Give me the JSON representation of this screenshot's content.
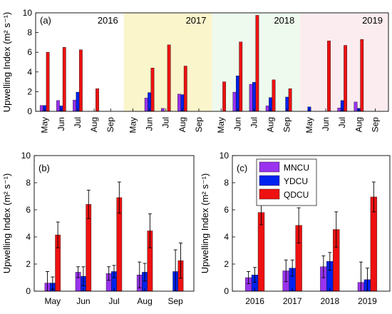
{
  "figure": {
    "colors": {
      "MNCU": "#9933ee",
      "YDCU": "#0022ee",
      "QDCU": "#ee1111"
    },
    "ylabel_main": "Upwelling Index",
    "ylabel_unit": "(m² s⁻¹)"
  },
  "chart_data": [
    {
      "id": "a",
      "type": "bar",
      "panel_label": "(a)",
      "ylim": [
        0,
        10
      ],
      "yticks": [
        0,
        2,
        4,
        6,
        8,
        10
      ],
      "months": [
        "May",
        "Jun",
        "Jul",
        "Aug",
        "Sep"
      ],
      "year_blocks": [
        {
          "year": "2016",
          "shade": "#ffffff",
          "values": [
            [
              0.6,
              0.6,
              6.0
            ],
            [
              1.1,
              0.55,
              6.5
            ],
            [
              1.15,
              1.95,
              6.25
            ],
            [
              0,
              0,
              2.3
            ],
            [
              0,
              0,
              0
            ]
          ]
        },
        {
          "year": "2017",
          "shade": "#fbf5cc",
          "values": [
            [
              0,
              0,
              0
            ],
            [
              1.35,
              1.9,
              4.4
            ],
            [
              0.3,
              0,
              6.75
            ],
            [
              1.75,
              1.7,
              4.6
            ],
            [
              0,
              0,
              0
            ]
          ]
        },
        {
          "year": "2018",
          "shade": "#eefaee",
          "values": [
            [
              0,
              0,
              3.0
            ],
            [
              1.95,
              3.6,
              7.05
            ],
            [
              2.75,
              2.95,
              9.75
            ],
            [
              0.55,
              1.4,
              3.2
            ],
            [
              0,
              1.45,
              2.3
            ]
          ]
        },
        {
          "year": "2019",
          "shade": "#fbecef",
          "values": [
            [
              0,
              0.45,
              0
            ],
            [
              0,
              0,
              7.15
            ],
            [
              0.35,
              1.1,
              6.7
            ],
            [
              0.95,
              0.3,
              7.3
            ],
            [
              0,
              0,
              0
            ]
          ]
        }
      ],
      "series": [
        "MNCU",
        "YDCU",
        "QDCU"
      ]
    },
    {
      "id": "b",
      "type": "bar",
      "panel_label": "(b)",
      "ylim": [
        0,
        10
      ],
      "yticks": [
        0,
        2,
        4,
        6,
        8,
        10
      ],
      "categories": [
        "May",
        "Jun",
        "Jul",
        "Aug",
        "Sep"
      ],
      "series": [
        {
          "name": "MNCU",
          "values": [
            0.6,
            1.4,
            1.3,
            1.2,
            0
          ],
          "err": [
            0.85,
            0.4,
            0.5,
            0.95,
            0
          ]
        },
        {
          "name": "YDCU",
          "values": [
            0.6,
            1.1,
            1.45,
            1.4,
            1.45
          ],
          "err": [
            0.45,
            0.7,
            0.45,
            0.65,
            1.6
          ]
        },
        {
          "name": "QDCU",
          "values": [
            4.15,
            6.4,
            6.9,
            4.45,
            2.25
          ],
          "err": [
            0.95,
            1.05,
            1.15,
            1.25,
            1.3
          ]
        }
      ]
    },
    {
      "id": "c",
      "type": "bar",
      "panel_label": "(c)",
      "ylim": [
        0,
        10
      ],
      "yticks": [
        0,
        2,
        4,
        6,
        8,
        10
      ],
      "categories": [
        "2016",
        "2017",
        "2018",
        "2019"
      ],
      "legend": [
        "MNCU",
        "YDCU",
        "QDCU"
      ],
      "series": [
        {
          "name": "MNCU",
          "values": [
            1.0,
            1.5,
            1.8,
            0.65
          ],
          "err": [
            0.45,
            0.8,
            0.8,
            1.5
          ]
        },
        {
          "name": "YDCU",
          "values": [
            1.2,
            1.7,
            2.2,
            0.85
          ],
          "err": [
            0.55,
            0.6,
            0.65,
            0.85
          ]
        },
        {
          "name": "QDCU",
          "values": [
            5.8,
            4.85,
            4.55,
            6.95
          ],
          "err": [
            0.9,
            1.3,
            1.3,
            1.1
          ]
        }
      ]
    }
  ]
}
